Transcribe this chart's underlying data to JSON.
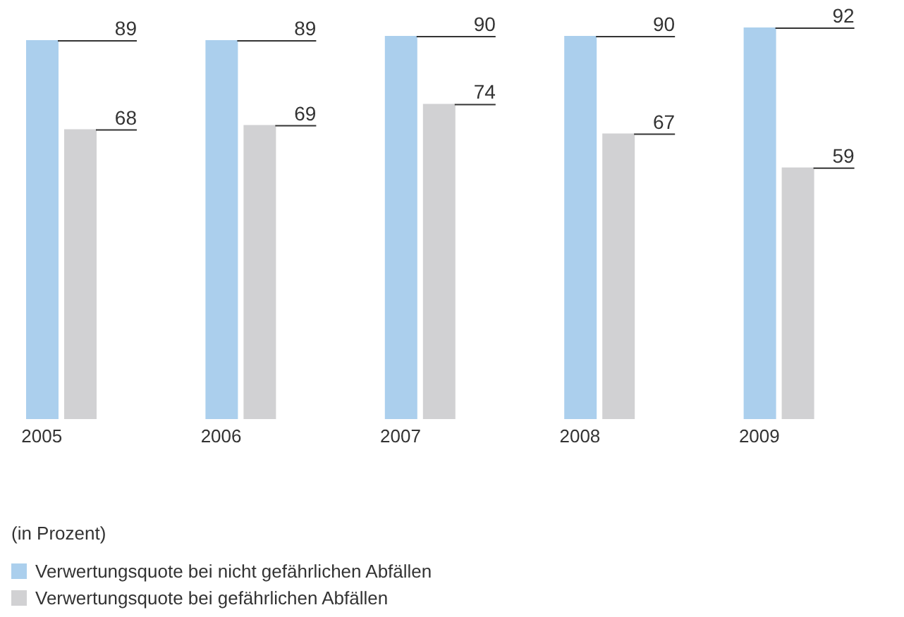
{
  "chart_data": {
    "type": "bar",
    "categories": [
      "2005",
      "2006",
      "2007",
      "2008",
      "2009"
    ],
    "series": [
      {
        "name": "Verwertungsquote bei nicht gefährlichen Abfällen",
        "color": "#abcfed",
        "values": [
          89,
          89,
          90,
          90,
          92
        ]
      },
      {
        "name": "Verwertungsquote bei gefährlichen Abfällen",
        "color": "#d1d1d3",
        "values": [
          68,
          69,
          74,
          67,
          59
        ]
      }
    ],
    "data_labels": true,
    "legend": "bottom left",
    "grid": false,
    "annotations": [
      "(in Prozent)"
    ]
  }
}
